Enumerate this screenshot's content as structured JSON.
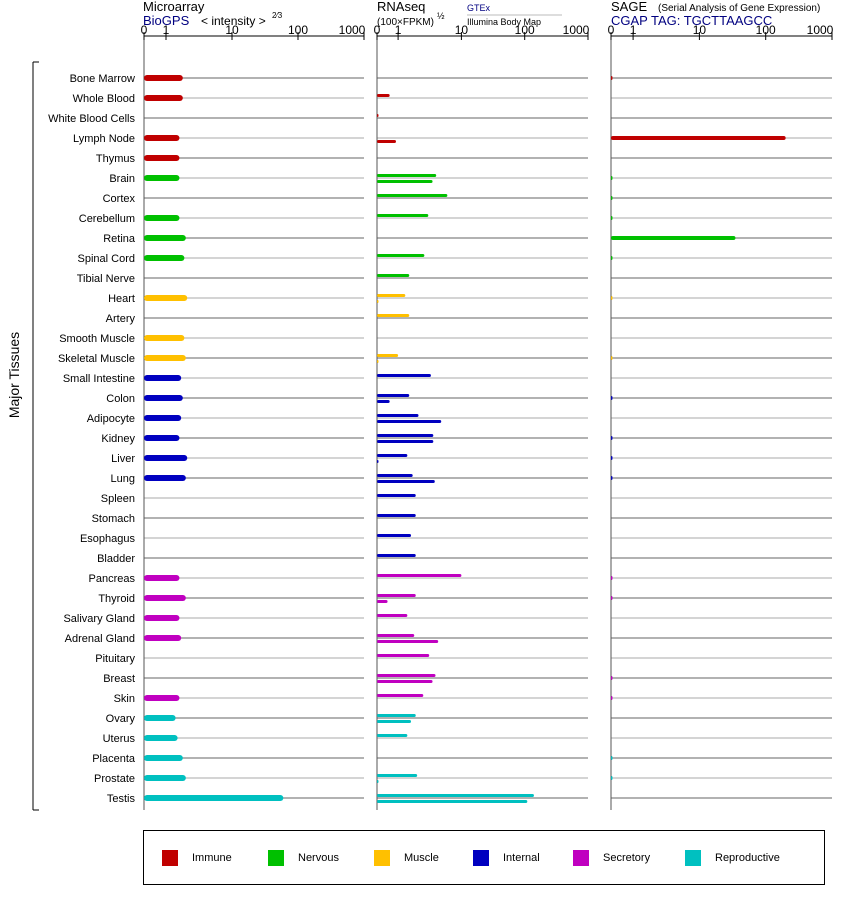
{
  "y_axis_title": "Major Tissues",
  "tissues": [
    "Bone Marrow",
    "Whole Blood",
    "White Blood Cells",
    "Lymph Node",
    "Thymus",
    "Brain",
    "Cortex",
    "Cerebellum",
    "Retina",
    "Spinal Cord",
    "Tibial Nerve",
    "Heart",
    "Artery",
    "Smooth Muscle",
    "Skeletal Muscle",
    "Small Intestine",
    "Colon",
    "Adipocyte",
    "Kidney",
    "Liver",
    "Lung",
    "Spleen",
    "Stomach",
    "Esophagus",
    "Bladder",
    "Pancreas",
    "Thyroid",
    "Salivary Gland",
    "Adrenal Gland",
    "Pituitary",
    "Breast",
    "Skin",
    "Ovary",
    "Uterus",
    "Placenta",
    "Prostate",
    "Testis"
  ],
  "tissue_groups": [
    "immune",
    "immune",
    "immune",
    "immune",
    "immune",
    "nervous",
    "nervous",
    "nervous",
    "nervous",
    "nervous",
    "nervous",
    "muscle",
    "muscle",
    "muscle",
    "muscle",
    "internal",
    "internal",
    "internal",
    "internal",
    "internal",
    "internal",
    "internal",
    "internal",
    "internal",
    "internal",
    "secretory",
    "secretory",
    "secretory",
    "secretory",
    "secretory",
    "secretory",
    "secretory",
    "reproductive",
    "reproductive",
    "reproductive",
    "reproductive",
    "reproductive"
  ],
  "colors": {
    "immune": "#c00000",
    "nervous": "#00c000",
    "muscle": "#ffc000",
    "internal": "#0000c0",
    "secretory": "#c000c0",
    "reproductive": "#00c0c0",
    "subtitle_link": "#000080"
  },
  "panels": {
    "microarray": {
      "title": "Microarray",
      "source": "BioGPS",
      "scale_label": "< intensity >",
      "scale_power": "2⁄3",
      "ticks": [
        "0",
        "1",
        "10",
        "100",
        "1000"
      ]
    },
    "rnaseq": {
      "title": "RNAseq",
      "units_label": "(100×FPKM)",
      "units_power": "½",
      "source1": "GTEx",
      "source2": "Illumina Body Map",
      "ticks": [
        "0",
        "1",
        "10",
        "100",
        "1000"
      ]
    },
    "sage": {
      "title": "SAGE",
      "description": "(Serial Analysis of Gene Expression)",
      "tag_label": "CGAP TAG: TGCTTAAGCC",
      "ticks": [
        "0",
        "1",
        "10",
        "100",
        "1000"
      ]
    }
  },
  "legend": [
    {
      "key": "immune",
      "label": "Immune"
    },
    {
      "key": "nervous",
      "label": "Nervous"
    },
    {
      "key": "muscle",
      "label": "Muscle"
    },
    {
      "key": "internal",
      "label": "Internal"
    },
    {
      "key": "secretory",
      "label": "Secretory"
    },
    {
      "key": "reproductive",
      "label": "Reproductive"
    }
  ],
  "chart_data": [
    {
      "type": "bar",
      "orientation": "horizontal",
      "title": "Microarray (BioGPS)",
      "xlabel": "< intensity >^(2/3)",
      "x_scale": "log-like",
      "xlim": [
        0,
        1000
      ],
      "x_ticks": [
        0,
        1,
        10,
        100,
        1000
      ],
      "categories": [
        "Bone Marrow",
        "Whole Blood",
        "White Blood Cells",
        "Lymph Node",
        "Thymus",
        "Brain",
        "Cortex",
        "Cerebellum",
        "Retina",
        "Spinal Cord",
        "Tibial Nerve",
        "Heart",
        "Artery",
        "Smooth Muscle",
        "Skeletal Muscle",
        "Small Intestine",
        "Colon",
        "Adipocyte",
        "Kidney",
        "Liver",
        "Lung",
        "Spleen",
        "Stomach",
        "Esophagus",
        "Bladder",
        "Pancreas",
        "Thyroid",
        "Salivary Gland",
        "Adrenal Gland",
        "Pituitary",
        "Breast",
        "Skin",
        "Ovary",
        "Uterus",
        "Placenta",
        "Prostate",
        "Testis"
      ],
      "values": [
        1.8,
        1.8,
        null,
        1.6,
        1.6,
        1.6,
        null,
        1.6,
        2.0,
        1.9,
        null,
        2.1,
        null,
        1.9,
        2.0,
        1.7,
        1.8,
        1.7,
        1.6,
        2.1,
        2.0,
        null,
        null,
        null,
        null,
        1.6,
        2.0,
        1.6,
        1.7,
        null,
        null,
        1.6,
        1.4,
        1.5,
        1.8,
        2.0,
        60
      ]
    },
    {
      "type": "bar",
      "orientation": "horizontal",
      "title": "RNAseq (GTEx / Illumina Body Map)",
      "xlabel": "(100×FPKM)^(1/2)",
      "x_scale": "log-like",
      "xlim": [
        0,
        1000
      ],
      "x_ticks": [
        0,
        1,
        10,
        100,
        1000
      ],
      "categories": [
        "Bone Marrow",
        "Whole Blood",
        "White Blood Cells",
        "Lymph Node",
        "Thymus",
        "Brain",
        "Cortex",
        "Cerebellum",
        "Retina",
        "Spinal Cord",
        "Tibial Nerve",
        "Heart",
        "Artery",
        "Smooth Muscle",
        "Skeletal Muscle",
        "Small Intestine",
        "Colon",
        "Adipocyte",
        "Kidney",
        "Liver",
        "Lung",
        "Spleen",
        "Stomach",
        "Esophagus",
        "Bladder",
        "Pancreas",
        "Thyroid",
        "Salivary Gland",
        "Adrenal Gland",
        "Pituitary",
        "Breast",
        "Skin",
        "Ovary",
        "Uterus",
        "Placenta",
        "Prostate",
        "Testis"
      ],
      "series": [
        {
          "name": "GTEx",
          "values": [
            null,
            0.6,
            0.05,
            null,
            null,
            4.0,
            6.0,
            3.0,
            null,
            2.6,
            1.5,
            1.3,
            1.5,
            null,
            1.0,
            3.3,
            1.5,
            2.1,
            3.6,
            1.4,
            1.7,
            1.9,
            1.9,
            1.6,
            1.9,
            10,
            1.9,
            1.4,
            1.8,
            3.1,
            3.9,
            2.5,
            1.9,
            1.4,
            null,
            2.0,
            140
          ]
        },
        {
          "name": "Illumina Body Map",
          "values": [
            null,
            null,
            null,
            0.9,
            null,
            3.5,
            null,
            null,
            null,
            null,
            null,
            0.05,
            null,
            null,
            0.05,
            null,
            0.6,
            4.8,
            3.6,
            0.05,
            3.8,
            null,
            null,
            null,
            null,
            null,
            0.5,
            null,
            4.3,
            null,
            3.5,
            null,
            1.6,
            null,
            null,
            0.05,
            110
          ]
        }
      ]
    },
    {
      "type": "bar",
      "orientation": "horizontal",
      "title": "SAGE (CGAP TAG: TGCTTAAGCC)",
      "xlabel": "",
      "x_scale": "log-like",
      "xlim": [
        0,
        1000
      ],
      "x_ticks": [
        0,
        1,
        10,
        100,
        1000
      ],
      "categories": [
        "Bone Marrow",
        "Whole Blood",
        "White Blood Cells",
        "Lymph Node",
        "Thymus",
        "Brain",
        "Cortex",
        "Cerebellum",
        "Retina",
        "Spinal Cord",
        "Tibial Nerve",
        "Heart",
        "Artery",
        "Smooth Muscle",
        "Skeletal Muscle",
        "Small Intestine",
        "Colon",
        "Adipocyte",
        "Kidney",
        "Liver",
        "Lung",
        "Spleen",
        "Stomach",
        "Esophagus",
        "Bladder",
        "Pancreas",
        "Thyroid",
        "Salivary Gland",
        "Adrenal Gland",
        "Pituitary",
        "Breast",
        "Skin",
        "Ovary",
        "Uterus",
        "Placenta",
        "Prostate",
        "Testis"
      ],
      "values": [
        0.05,
        null,
        null,
        200,
        null,
        0.05,
        0.05,
        0.05,
        35,
        0.05,
        null,
        0.05,
        null,
        null,
        0.05,
        null,
        0.05,
        null,
        0.05,
        0.05,
        0.05,
        null,
        null,
        null,
        null,
        0.05,
        0.05,
        null,
        null,
        null,
        0.05,
        0.05,
        null,
        null,
        0.05,
        0.05,
        null
      ]
    }
  ]
}
